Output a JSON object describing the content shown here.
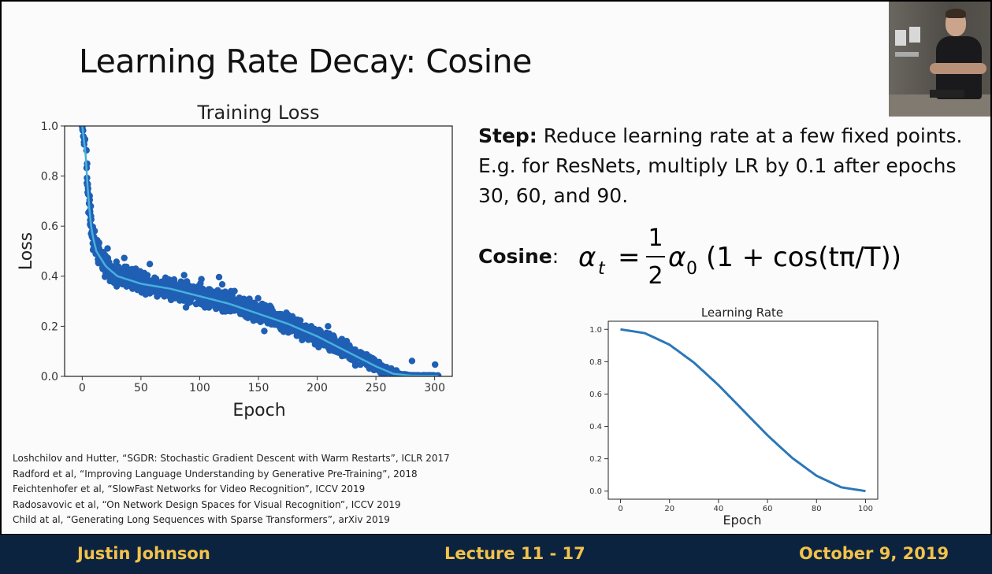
{
  "slide": {
    "title_main": "Learning Rate Decay",
    "title_sep": ": ",
    "title_sub": "Cosine",
    "step_label": "Step:",
    "step_text": " Reduce learning rate at a few fixed points. E.g. for ResNets, multiply LR by 0.1 after epochs 30, 60, and 90.",
    "cosine_label": "Cosine",
    "cosine_colon": ":",
    "formula": {
      "lhs": "α",
      "lhs_sub": "t",
      "equals": "=",
      "numerator": "1",
      "denominator": "2",
      "alpha": "α",
      "alpha_sub": "0",
      "rest": "(1 + cos(tπ/T))"
    },
    "references": [
      "Loshchilov and Hutter, “SGDR: Stochastic Gradient Descent with Warm Restarts”, ICLR 2017",
      "Radford et al, “Improving Language Understanding by Generative Pre-Training”, 2018",
      "Feichtenhofer et al, “SlowFast Networks for Video Recognition”, ICCV 2019",
      "Radosavovic et al, “On Network Design Spaces for Visual Recognition”, ICCV 2019",
      "Child at al, “Generating Long Sequences with Sparse Transformers”, arXiv 2019"
    ]
  },
  "footer": {
    "author": "Justin Johnson",
    "lecture": "Lecture 11 - 17",
    "date": "October 9, 2019"
  },
  "colors": {
    "footer_bg": "#0c2340",
    "footer_text": "#f2c24a",
    "scatter": "#1f5fb4",
    "smooth_line": "#46b0dd",
    "lr_line": "#2c77b8"
  },
  "chart_data": [
    {
      "type": "scatter",
      "title": "Training Loss",
      "xlabel": "Epoch",
      "ylabel": "Loss",
      "xlim": [
        -15,
        315
      ],
      "ylim": [
        0,
        1.0
      ],
      "xticks": [
        0,
        50,
        100,
        150,
        200,
        250,
        300
      ],
      "yticks": [
        0.0,
        0.2,
        0.4,
        0.6,
        0.8,
        1.0
      ],
      "series": [
        {
          "kind": "smoothed",
          "x": [
            0,
            3,
            5,
            8,
            12,
            20,
            30,
            50,
            75,
            100,
            125,
            150,
            175,
            200,
            225,
            250,
            265,
            280,
            300
          ],
          "y": [
            1.0,
            0.88,
            0.72,
            0.58,
            0.5,
            0.44,
            0.4,
            0.37,
            0.35,
            0.32,
            0.29,
            0.25,
            0.21,
            0.16,
            0.1,
            0.04,
            0.01,
            0.003,
            0.002
          ]
        },
        {
          "kind": "scatter_band",
          "x": [
            0,
            3,
            5,
            8,
            12,
            20,
            30,
            50,
            75,
            100,
            125,
            150,
            175,
            200,
            225,
            250,
            265,
            280,
            300
          ],
          "y_low": [
            1.0,
            0.78,
            0.6,
            0.48,
            0.42,
            0.36,
            0.33,
            0.3,
            0.29,
            0.26,
            0.23,
            0.19,
            0.15,
            0.1,
            0.05,
            0.005,
            0.0,
            0.0,
            0.0
          ],
          "y_high": [
            1.0,
            1.0,
            0.88,
            0.7,
            0.6,
            0.52,
            0.48,
            0.45,
            0.41,
            0.39,
            0.36,
            0.32,
            0.28,
            0.22,
            0.16,
            0.08,
            0.02,
            0.006,
            0.006
          ]
        }
      ]
    },
    {
      "type": "line",
      "title": "Learning Rate",
      "xlabel": "Epoch",
      "ylabel": "",
      "xlim": [
        -5,
        105
      ],
      "ylim": [
        -0.05,
        1.05
      ],
      "xticks": [
        0,
        20,
        40,
        60,
        80,
        100
      ],
      "yticks": [
        0.0,
        0.2,
        0.4,
        0.6,
        0.8,
        1.0
      ],
      "x": [
        0,
        10,
        20,
        30,
        40,
        50,
        60,
        70,
        80,
        90,
        100
      ],
      "y": [
        1.0,
        0.976,
        0.905,
        0.794,
        0.655,
        0.5,
        0.345,
        0.206,
        0.095,
        0.024,
        0.0
      ]
    }
  ]
}
